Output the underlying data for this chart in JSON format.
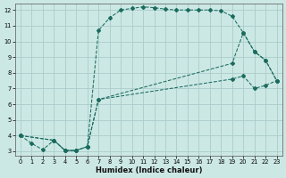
{
  "xlabel": "Humidex (Indice chaleur)",
  "bg_color": "#cce8e5",
  "grid_color": "#aaccca",
  "line_color": "#1a6b5e",
  "xlim": [
    -0.5,
    23.5
  ],
  "ylim": [
    2.7,
    12.4
  ],
  "xticks": [
    0,
    1,
    2,
    3,
    4,
    5,
    6,
    7,
    8,
    9,
    10,
    11,
    12,
    13,
    14,
    15,
    16,
    17,
    18,
    19,
    20,
    21,
    22,
    23
  ],
  "yticks": [
    3,
    4,
    5,
    6,
    7,
    8,
    9,
    10,
    11,
    12
  ],
  "curve1_x": [
    0,
    1,
    2,
    3,
    4,
    5,
    6,
    7,
    8,
    9,
    10,
    11,
    12,
    13,
    14,
    15,
    16,
    17,
    18,
    19,
    20,
    21,
    22,
    23
  ],
  "curve1_y": [
    4.0,
    3.5,
    3.1,
    3.7,
    3.05,
    3.05,
    3.3,
    10.7,
    11.5,
    12.0,
    12.1,
    12.2,
    12.15,
    12.05,
    12.0,
    12.0,
    12.0,
    12.0,
    11.95,
    11.6,
    10.55,
    9.35,
    8.8,
    7.5
  ],
  "curve2_x": [
    0,
    3,
    4,
    5,
    6,
    7,
    19,
    20,
    21,
    22,
    23
  ],
  "curve2_y": [
    4.0,
    3.7,
    3.05,
    3.05,
    3.3,
    6.3,
    8.6,
    10.55,
    9.35,
    8.8,
    7.5
  ],
  "curve3_x": [
    0,
    3,
    4,
    5,
    6,
    7,
    19,
    20,
    21,
    22,
    23
  ],
  "curve3_y": [
    4.0,
    3.7,
    3.05,
    3.05,
    3.3,
    6.3,
    7.6,
    7.8,
    7.0,
    7.2,
    7.5
  ]
}
